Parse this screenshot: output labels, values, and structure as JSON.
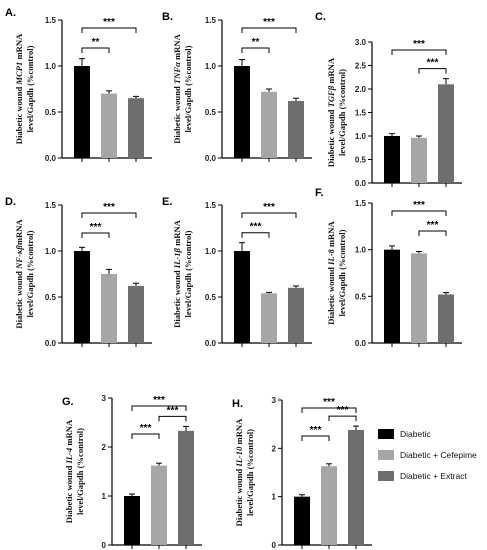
{
  "legend": {
    "entries": [
      "Diabetic",
      "Diabetic + Cefepime",
      "Diabetic + Extract"
    ],
    "colors": [
      "#000000",
      "#a6a6a6",
      "#6e6e6e"
    ]
  },
  "chart_data": [
    {
      "type": "bar",
      "panel": "A.",
      "ylabel": {
        "pre": "Diabetic wound ",
        "gene": "MCP1",
        "post": " mRNA",
        "line2": "level/Gapdh  (%control)"
      },
      "categories": [
        "Diabetic",
        "Diabetic + Cefepime",
        "Diabetic + Extract"
      ],
      "values": [
        1.0,
        0.7,
        0.65
      ],
      "errors": [
        0.08,
        0.03,
        0.02
      ],
      "ylim": [
        0,
        1.5
      ],
      "yticks": [
        "0.0",
        "0.5",
        "1.0",
        "1.5"
      ],
      "significance": [
        {
          "from": 0,
          "to": 1,
          "label": "**"
        },
        {
          "from": 0,
          "to": 2,
          "label": "***"
        }
      ]
    },
    {
      "type": "bar",
      "panel": "B.",
      "ylabel": {
        "pre": "Diabetic wound ",
        "gene": "TNFα",
        "post": " mRNA",
        "line2": "level/Gapdh  (%control)"
      },
      "categories": [
        "Diabetic",
        "Diabetic + Cefepime",
        "Diabetic + Extract"
      ],
      "values": [
        1.0,
        0.72,
        0.62
      ],
      "errors": [
        0.07,
        0.03,
        0.03
      ],
      "ylim": [
        0,
        1.5
      ],
      "yticks": [
        "0.0",
        "0.5",
        "1.0",
        "1.5"
      ],
      "significance": [
        {
          "from": 0,
          "to": 1,
          "label": "**"
        },
        {
          "from": 0,
          "to": 2,
          "label": "***"
        }
      ]
    },
    {
      "type": "bar",
      "panel": "C.",
      "ylabel": {
        "pre": "Diabetic wound ",
        "gene": "TGFβ",
        "post": " mRNA",
        "line2": "level/Gapdh  (%control)"
      },
      "categories": [
        "Diabetic",
        "Diabetic + Cefepime",
        "Diabetic + Extract"
      ],
      "values": [
        1.0,
        0.96,
        2.1
      ],
      "errors": [
        0.05,
        0.04,
        0.12
      ],
      "ylim": [
        0,
        3.0
      ],
      "yticks": [
        "0.0",
        "0.5",
        "1.0",
        "1.5",
        "2.0",
        "2.5",
        "3.0"
      ],
      "significance": [
        {
          "from": 1,
          "to": 2,
          "label": "***"
        },
        {
          "from": 0,
          "to": 2,
          "label": "***"
        }
      ]
    },
    {
      "type": "bar",
      "panel": "D.",
      "ylabel": {
        "pre": "Diabetic wound ",
        "gene": "NF-κβ",
        "post": "mRNA",
        "line2": "level/Gapdh  (%control)"
      },
      "categories": [
        "Diabetic",
        "Diabetic + Cefepime",
        "Diabetic + Extract"
      ],
      "values": [
        1.0,
        0.75,
        0.62
      ],
      "errors": [
        0.04,
        0.05,
        0.03
      ],
      "ylim": [
        0,
        1.5
      ],
      "yticks": [
        "0.0",
        "0.5",
        "1.0",
        "1.5"
      ],
      "significance": [
        {
          "from": 0,
          "to": 1,
          "label": "***"
        },
        {
          "from": 0,
          "to": 2,
          "label": "***"
        }
      ]
    },
    {
      "type": "bar",
      "panel": "E.",
      "ylabel": {
        "pre": "Diabetic wound ",
        "gene": "IL-1β",
        "post": " mRNA",
        "line2": "level/Gapdh  (%control)"
      },
      "categories": [
        "Diabetic",
        "Diabetic + Cefepime",
        "Diabetic + Extract"
      ],
      "values": [
        1.0,
        0.54,
        0.6
      ],
      "errors": [
        0.09,
        0.01,
        0.02
      ],
      "ylim": [
        0,
        1.5
      ],
      "yticks": [
        "0.0",
        "0.5",
        "1.0",
        "1.5"
      ],
      "significance": [
        {
          "from": 0,
          "to": 1,
          "label": "***"
        },
        {
          "from": 0,
          "to": 2,
          "label": "***"
        }
      ]
    },
    {
      "type": "bar",
      "panel": "F.",
      "ylabel": {
        "pre": "Diabetic wound ",
        "gene": "IL-8",
        "post": " mRNA",
        "line2": "level/Gapdh  (%control)"
      },
      "categories": [
        "Diabetic",
        "Diabetic + Cefepime",
        "Diabetic + Extract"
      ],
      "values": [
        1.0,
        0.96,
        0.52
      ],
      "errors": [
        0.04,
        0.02,
        0.02
      ],
      "ylim": [
        0,
        1.5
      ],
      "yticks": [
        "0.0",
        "0.5",
        "1.0",
        "1.5"
      ],
      "significance": [
        {
          "from": 1,
          "to": 2,
          "label": "***"
        },
        {
          "from": 0,
          "to": 2,
          "label": "***"
        }
      ]
    },
    {
      "type": "bar",
      "panel": "G.",
      "ylabel": {
        "pre": "Diabetic wound ",
        "gene": "IL-4",
        "post": " mRNA",
        "line2": "level/Gapdh  (%control)"
      },
      "categories": [
        "Diabetic",
        "Diabetic + Cefepime",
        "Diabetic + Extract"
      ],
      "values": [
        1.0,
        1.62,
        2.33
      ],
      "errors": [
        0.04,
        0.05,
        0.09
      ],
      "ylim": [
        0,
        3
      ],
      "yticks": [
        "0",
        "1",
        "2",
        "3"
      ],
      "significance": [
        {
          "from": 0,
          "to": 1,
          "label": "***"
        },
        {
          "from": 1,
          "to": 2,
          "label": "***"
        },
        {
          "from": 0,
          "to": 2,
          "label": "***"
        }
      ]
    },
    {
      "type": "bar",
      "panel": "H.",
      "ylabel": {
        "pre": "Diabetic wound ",
        "gene": "IL-10",
        "post": " mRNA",
        "line2": "level/Gapdh  (%control)"
      },
      "categories": [
        "Diabetic",
        "Diabetic + Cefepime",
        "Diabetic + Extract"
      ],
      "values": [
        1.0,
        1.63,
        2.38
      ],
      "errors": [
        0.04,
        0.05,
        0.08
      ],
      "ylim": [
        0,
        3
      ],
      "yticks": [
        "0",
        "1",
        "2",
        "3"
      ],
      "significance": [
        {
          "from": 0,
          "to": 1,
          "label": "***"
        },
        {
          "from": 1,
          "to": 2,
          "label": "***"
        },
        {
          "from": 0,
          "to": 2,
          "label": "***"
        }
      ]
    }
  ]
}
